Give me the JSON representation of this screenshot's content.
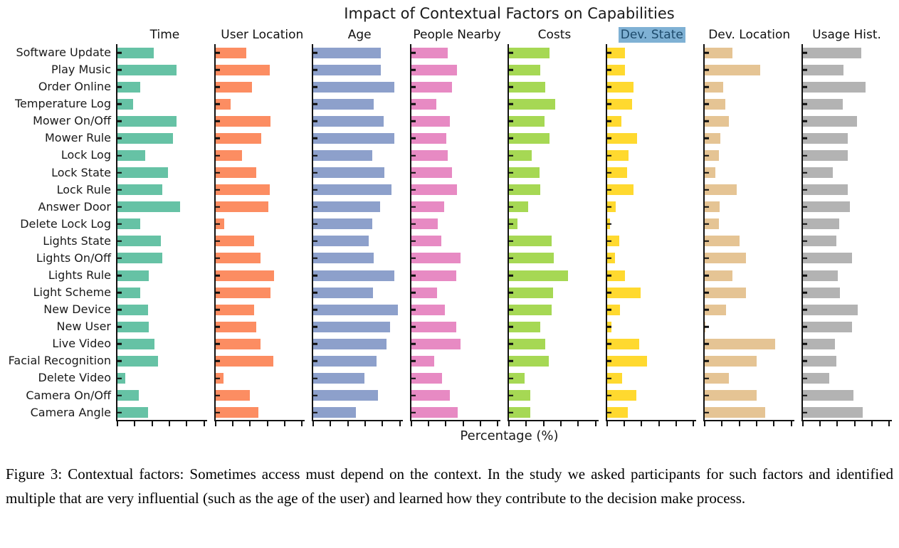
{
  "figure": {
    "caption": "Figure 3: Contextual factors: Sometimes access must depend on the context. In the study we asked participants for such factors and identified multiple that are very influential (such as the age of the user) and learned how they contribute to the decision make process."
  },
  "chart_data": {
    "type": "bar",
    "orientation": "horizontal",
    "title": "Impact of Contextual Factors on Capabilities",
    "xlabel": "Percentage (%)",
    "xlim": [
      0,
      100
    ],
    "x_ticks": [
      0,
      20,
      40,
      60,
      80,
      100
    ],
    "grid": false,
    "legend_position": "none",
    "categories": [
      "Software Update",
      "Play Music",
      "Order Online",
      "Temperature Log",
      "Mower On/Off",
      "Mower Rule",
      "Lock Log",
      "Lock State",
      "Lock Rule",
      "Answer Door",
      "Delete Lock Log",
      "Lights State",
      "Lights On/Off",
      "Lights Rule",
      "Light Scheme",
      "New Device",
      "New User",
      "Live Video",
      "Facial Recognition",
      "Delete Video",
      "Camera On/Off",
      "Camera Angle"
    ],
    "series": [
      {
        "name": "Time",
        "color": "#66c2a5",
        "highlighted": false,
        "values": [
          42,
          68,
          26,
          18,
          68,
          64,
          32,
          58,
          52,
          72,
          26,
          50,
          52,
          36,
          26,
          35,
          36,
          43,
          47,
          9,
          25,
          35
        ]
      },
      {
        "name": "User Location",
        "color": "#fc8d62",
        "highlighted": false,
        "values": [
          36,
          63,
          42,
          18,
          64,
          53,
          31,
          47,
          63,
          61,
          10,
          45,
          52,
          68,
          64,
          45,
          47,
          52,
          67,
          9,
          40,
          50
        ]
      },
      {
        "name": "Age",
        "color": "#8da0cb",
        "highlighted": false,
        "values": [
          78,
          78,
          94,
          70,
          81,
          94,
          68,
          82,
          90,
          77,
          68,
          64,
          70,
          94,
          69,
          98,
          89,
          85,
          73,
          59,
          75,
          49
        ]
      },
      {
        "name": "People Nearby",
        "color": "#e78ac3",
        "highlighted": false,
        "values": [
          42,
          53,
          47,
          29,
          45,
          41,
          42,
          47,
          53,
          38,
          31,
          35,
          57,
          52,
          30,
          39,
          52,
          57,
          27,
          36,
          45,
          54
        ]
      },
      {
        "name": "Costs",
        "color": "#a6d854",
        "highlighted": false,
        "values": [
          47,
          36,
          42,
          53,
          41,
          47,
          26,
          35,
          36,
          22,
          10,
          49,
          52,
          68,
          51,
          49,
          36,
          42,
          46,
          18,
          25,
          25
        ]
      },
      {
        "name": "Dev. State",
        "color": "#ffd92f",
        "highlighted": true,
        "values": [
          21,
          21,
          31,
          29,
          17,
          35,
          25,
          23,
          31,
          10,
          4,
          14,
          9,
          21,
          39,
          15,
          5,
          37,
          46,
          18,
          34,
          24
        ]
      },
      {
        "name": "Dev. Location",
        "color": "#e5c494",
        "highlighted": false,
        "values": [
          32,
          64,
          21,
          24,
          28,
          18,
          16,
          12,
          37,
          17,
          16,
          40,
          48,
          32,
          48,
          25,
          1,
          81,
          60,
          28,
          60,
          70
        ]
      },
      {
        "name": "Usage Hist.",
        "color": "#b3b3b3",
        "highlighted": false,
        "values": [
          68,
          47,
          73,
          46,
          63,
          52,
          52,
          35,
          52,
          55,
          42,
          39,
          57,
          41,
          43,
          64,
          57,
          37,
          39,
          31,
          59,
          69
        ]
      }
    ],
    "highlight": {
      "series": "Dev. State",
      "background": "#7fb1d4",
      "text_color": "#1d4a6b"
    }
  }
}
